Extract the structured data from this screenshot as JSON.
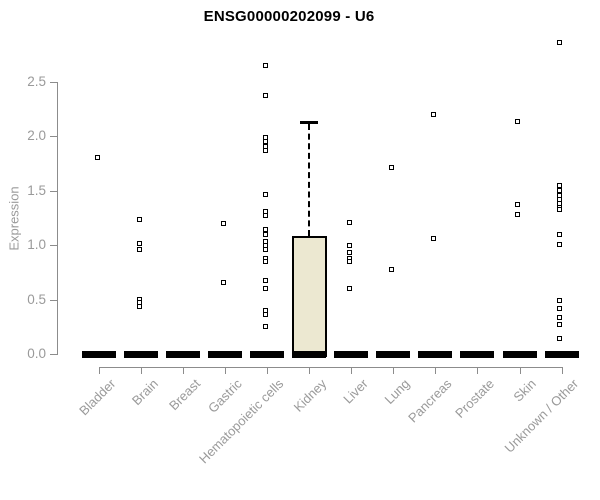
{
  "chart_data": {
    "type": "boxplot",
    "title": "ENSG00000202099 - U6",
    "xlabel": "",
    "ylabel": "Expression",
    "ylim": [
      0,
      2.9
    ],
    "yticks": [
      {
        "label": "0.0",
        "value": 0.0
      },
      {
        "label": "0.5",
        "value": 0.5
      },
      {
        "label": "1.0",
        "value": 1.0
      },
      {
        "label": "1.5",
        "value": 1.5
      },
      {
        "label": "2.0",
        "value": 2.0
      },
      {
        "label": "2.5",
        "value": 2.5
      }
    ],
    "grid": false,
    "legend": "none",
    "marker": {
      "shape": "open-square",
      "size": 5
    },
    "categories": [
      "Bladder",
      "Brain",
      "Breast",
      "Gastric",
      "Hematopoietic cells",
      "Kidney",
      "Liver",
      "Lung",
      "Pancreas",
      "Prostate",
      "Skin",
      "Unknown / Other"
    ],
    "series": [
      {
        "category": "Bladder",
        "box": {
          "q1": 0,
          "median": 0,
          "q3": 0,
          "whisker_high": 0
        },
        "points": [
          1.81
        ]
      },
      {
        "category": "Brain",
        "box": {
          "q1": 0,
          "median": 0,
          "q3": 0,
          "whisker_high": 0
        },
        "points": [
          1.24,
          1.02,
          0.96,
          0.5,
          0.47,
          0.44
        ]
      },
      {
        "category": "Breast",
        "box": {
          "q1": 0,
          "median": 0,
          "q3": 0,
          "whisker_high": 0
        },
        "points": []
      },
      {
        "category": "Gastric",
        "box": {
          "q1": 0,
          "median": 0,
          "q3": 0,
          "whisker_high": 0
        },
        "points": [
          1.2,
          0.66
        ]
      },
      {
        "category": "Hematopoietic cells",
        "box": {
          "q1": 0,
          "median": 0,
          "q3": 0,
          "whisker_high": 0
        },
        "points": [
          2.65,
          2.38,
          1.99,
          1.95,
          1.91,
          1.87,
          1.47,
          1.31,
          1.27,
          1.14,
          1.1,
          1.03,
          1.0,
          0.96,
          0.88,
          0.85,
          0.68,
          0.6,
          0.4,
          0.36,
          0.25
        ]
      },
      {
        "category": "Kidney",
        "box": {
          "q1": 0,
          "median": 0,
          "q3": 1.08,
          "whisker_high": 2.13
        },
        "points": []
      },
      {
        "category": "Liver",
        "box": {
          "q1": 0,
          "median": 0,
          "q3": 0,
          "whisker_high": 0
        },
        "points": [
          1.21,
          1.0,
          0.93,
          0.88,
          0.85,
          0.6
        ]
      },
      {
        "category": "Lung",
        "box": {
          "q1": 0,
          "median": 0,
          "q3": 0,
          "whisker_high": 0
        },
        "points": [
          1.71,
          0.78
        ]
      },
      {
        "category": "Pancreas",
        "box": {
          "q1": 0,
          "median": 0,
          "q3": 0,
          "whisker_high": 0
        },
        "points": [
          2.2,
          1.06
        ]
      },
      {
        "category": "Prostate",
        "box": {
          "q1": 0,
          "median": 0,
          "q3": 0,
          "whisker_high": 0
        },
        "points": []
      },
      {
        "category": "Skin",
        "box": {
          "q1": 0,
          "median": 0,
          "q3": 0,
          "whisker_high": 0
        },
        "points": [
          2.14,
          1.37,
          1.28
        ]
      },
      {
        "category": "Unknown / Other",
        "box": {
          "q1": 0,
          "median": 0,
          "q3": 0,
          "whisker_high": 0
        },
        "points": [
          2.86,
          1.55,
          1.5,
          1.46,
          1.42,
          1.38,
          1.35,
          1.33,
          1.1,
          1.01,
          0.49,
          0.42,
          0.34,
          0.27,
          0.14
        ]
      }
    ],
    "colors": {
      "title": "#000000",
      "axis": "#8c8c8c",
      "tick_label": "#9a9a9a",
      "box_fill": "#ece8d1",
      "box_border": "#000000",
      "point": "#000000",
      "zero_bar": "#000000"
    }
  }
}
